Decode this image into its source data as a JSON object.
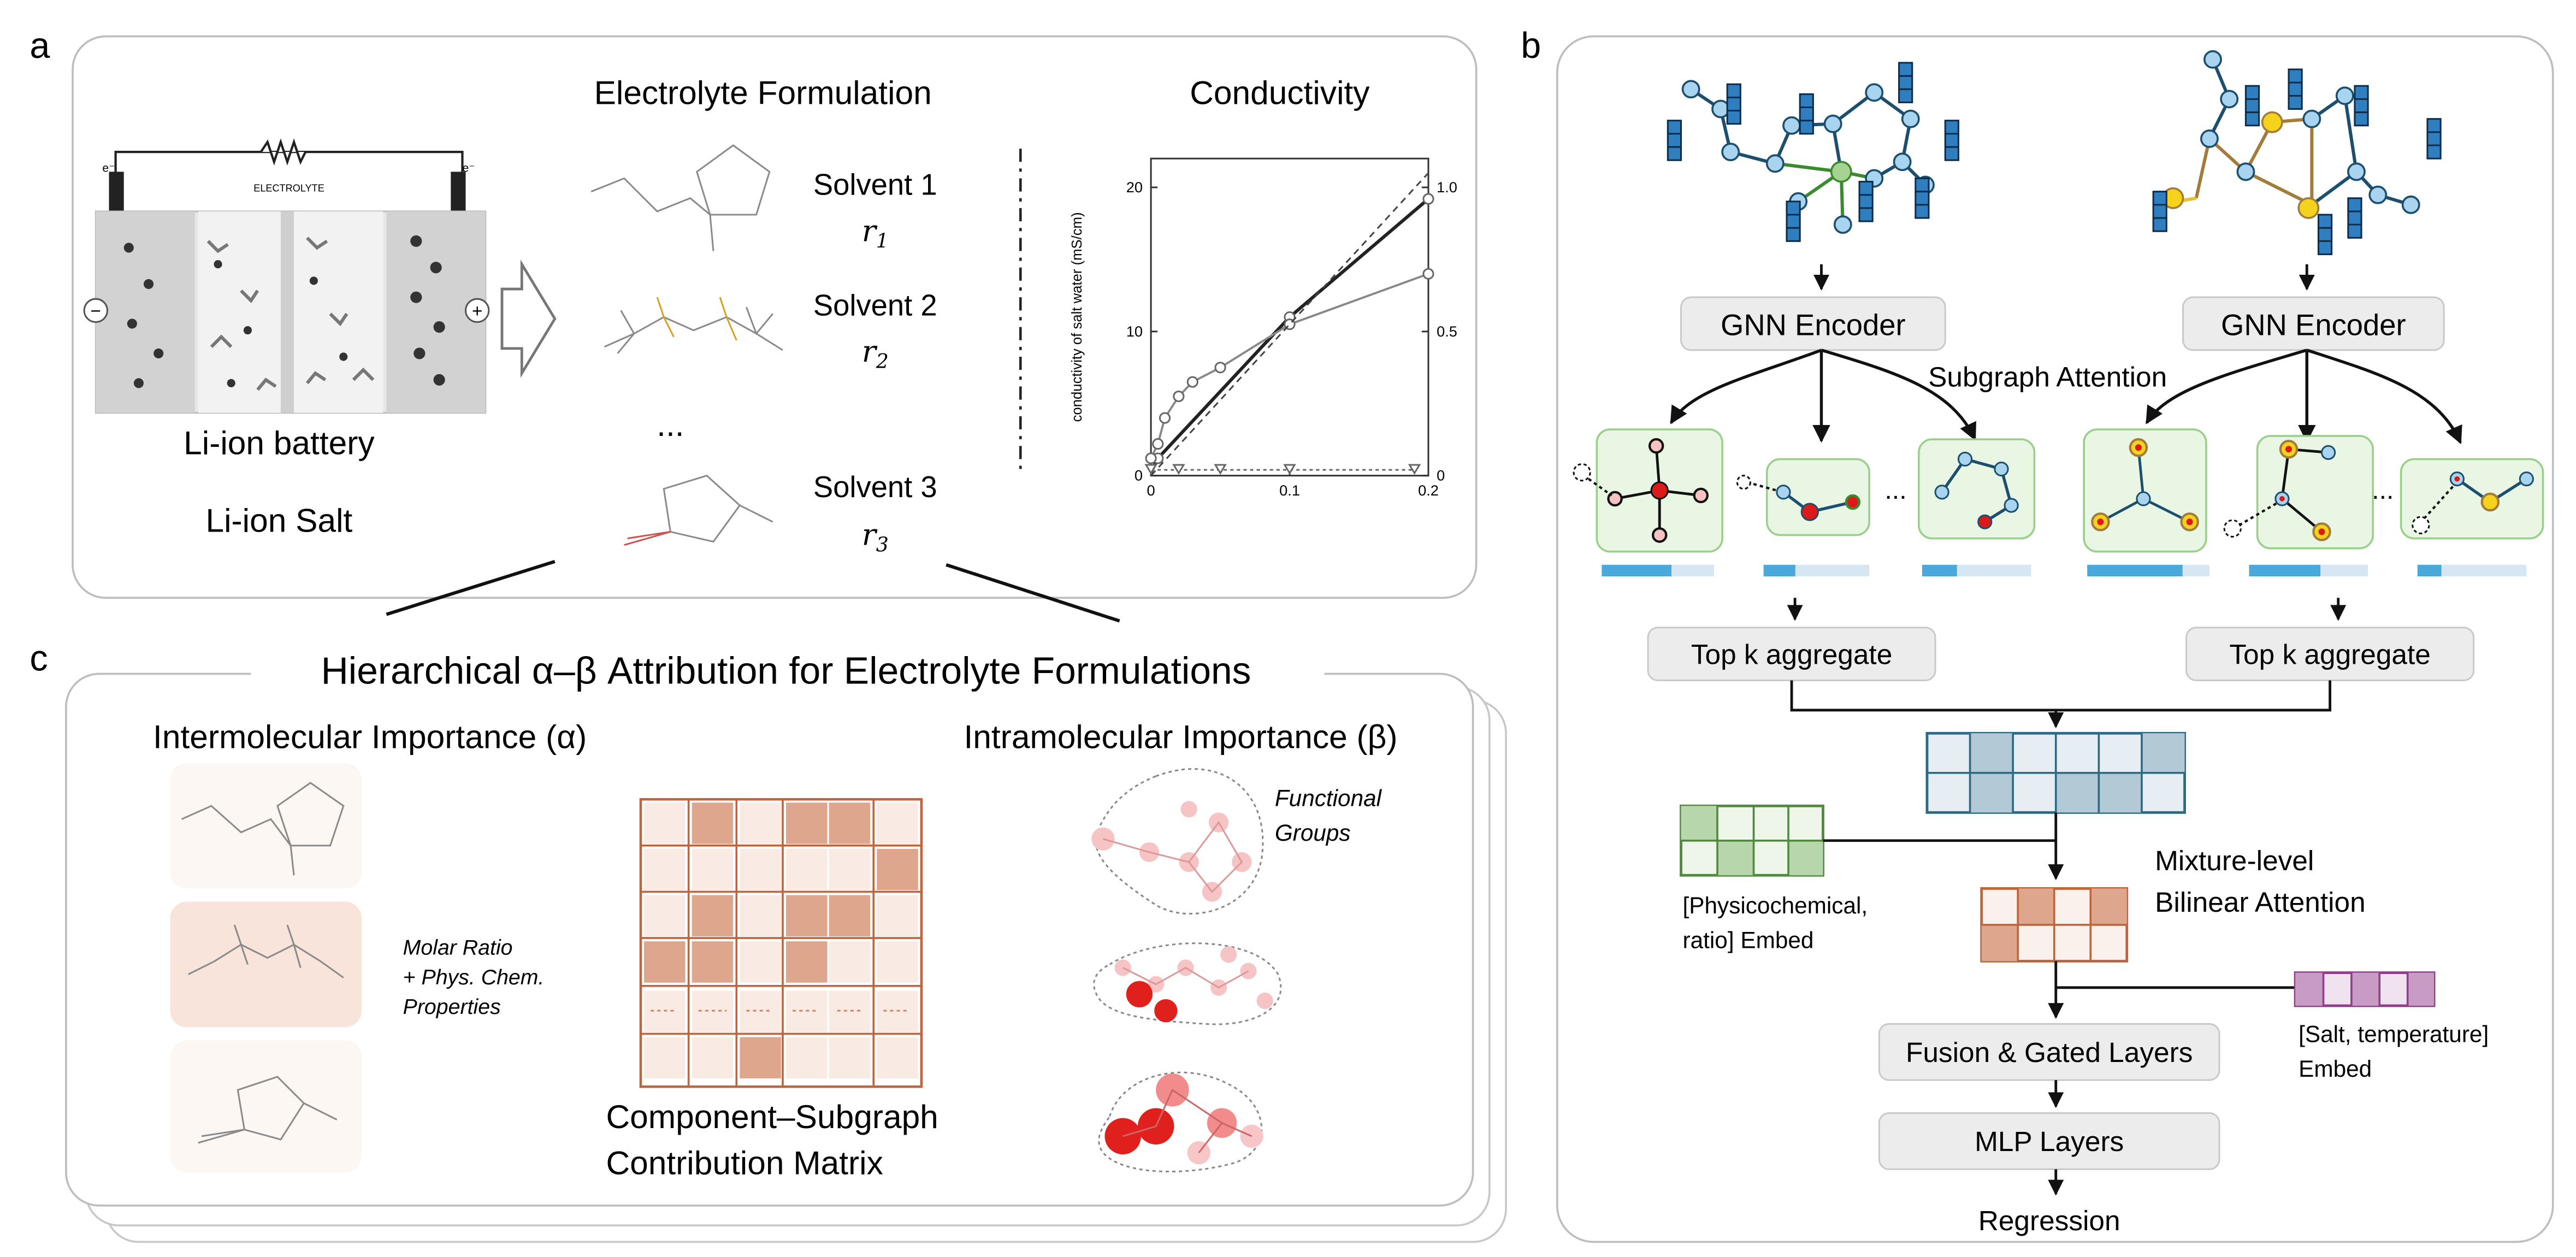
{
  "panels": {
    "a": "a",
    "b": "b",
    "c": "c"
  },
  "panel_a": {
    "battery_label": "Li-ion battery",
    "salt_label": "Li-ion Salt",
    "electrolyte_tag": "ELECTROLYTE",
    "minus": "−",
    "plus": "+",
    "e_left": "e⁻",
    "e_right": "e⁻",
    "formulation_title": "Electrolyte Formulation",
    "solvents": [
      {
        "name": "Solvent 1",
        "ratio_base": "r",
        "ratio_sub": "1"
      },
      {
        "name": "Solvent 2",
        "ratio_base": "r",
        "ratio_sub": "2"
      },
      {
        "name": "Solvent 3",
        "ratio_base": "r",
        "ratio_sub": "3"
      }
    ],
    "ellipsis": "...",
    "conductivity_title": "Conductivity",
    "chart_ylabel": "conductivity of salt water (mS/cm)"
  },
  "chart_data": {
    "type": "line",
    "title": "Conductivity",
    "xlabel": "",
    "ylabel": "conductivity of salt water (mS/cm)",
    "xlim": [
      0,
      0.2
    ],
    "ylim": [
      0,
      22
    ],
    "y2lim": [
      0,
      1.1
    ],
    "x_ticks": [
      "0",
      "0.1",
      "0.2"
    ],
    "y_ticks": [
      "0",
      "10",
      "20"
    ],
    "y2_ticks": [
      "0",
      "0.5",
      "1.0"
    ],
    "series": [
      {
        "style": "solid-dark",
        "x": [
          0,
          0.005,
          0.1,
          0.2
        ],
        "y": [
          0.2,
          1.2,
          11,
          19.2
        ]
      },
      {
        "style": "solid-light",
        "x": [
          0,
          0.005,
          0.01,
          0.02,
          0.03,
          0.05,
          0.1,
          0.2
        ],
        "y": [
          1.2,
          2.2,
          4,
          5.5,
          6.5,
          7.5,
          10.5,
          14
        ]
      },
      {
        "style": "dashed",
        "x": [
          0,
          0.2
        ],
        "y": [
          0,
          21
        ]
      },
      {
        "style": "dotted-triangles",
        "x": [
          0,
          0.02,
          0.05,
          0.1,
          0.19
        ],
        "y": [
          0.4,
          0.4,
          0.4,
          0.4,
          0.4
        ]
      }
    ]
  },
  "panel_b": {
    "encoder_left": "GNN Encoder",
    "encoder_right": "GNN Encoder",
    "subgraph_attention": "Subgraph Attention",
    "topk_left": "Top k aggregate",
    "topk_right": "Top k aggregate",
    "ellipsis": "...",
    "physchem_line1": "[Physicochemical,",
    "physchem_line2": "ratio] Embed",
    "mixture_line1": "Mixture-level",
    "mixture_line2": "Bilinear Attention",
    "salt_line1": "[Salt, temperature]",
    "salt_line2": "Embed",
    "fusion": "Fusion & Gated Layers",
    "mlp": "MLP Layers",
    "regression": "Regression",
    "attention_bars": [
      0.62,
      0.3,
      0.32,
      0.78,
      0.6,
      0.22
    ],
    "colors": {
      "blue_node": "#a8d4f0",
      "yellow_node": "#f5d21b",
      "red_node": "#dd1a1a",
      "bar": "#4aa8db",
      "bar_bg": "#d6e6f3",
      "green_box": "#e9f6e4"
    }
  },
  "panel_c": {
    "title": "Hierarchical α–β Attribution for Electrolyte Formulations",
    "inter_title": "Intermolecular Importance (α)",
    "intra_title": "Intramolecular Importance (β)",
    "molar_line1": "Molar Ratio",
    "molar_line2": "+ Phys. Chem.",
    "molar_line3": "Properties",
    "functional_line1": "Functional",
    "functional_line2": "Groups",
    "matrix_line1": "Component–Subgraph",
    "matrix_line2": "Contribution Matrix",
    "colors": {
      "matrix_border": "#c0643c",
      "matrix_dark": "#d9a48a",
      "matrix_light": "#fbf1ec"
    }
  }
}
